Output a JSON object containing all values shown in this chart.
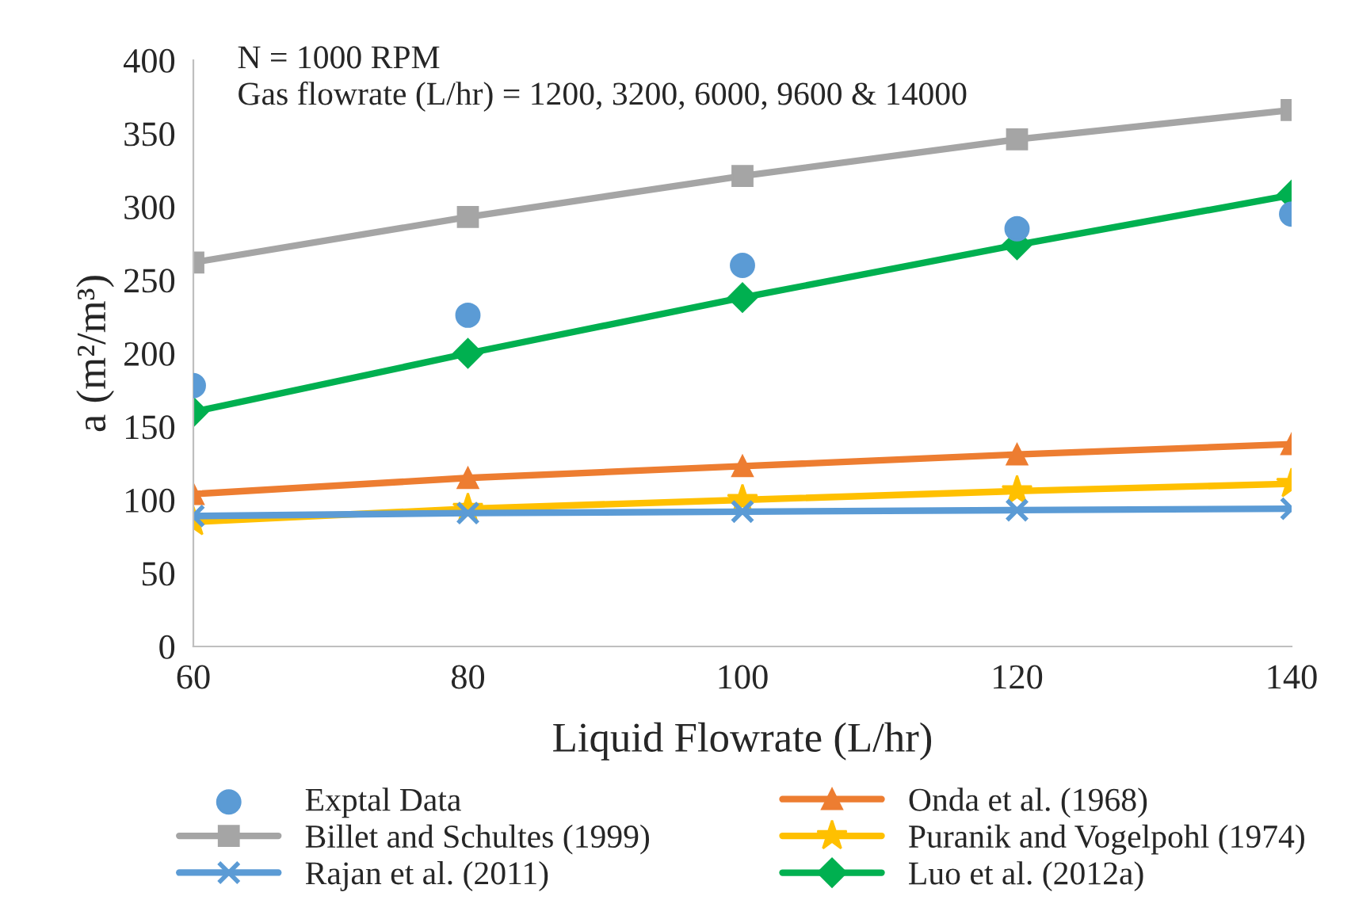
{
  "chart_data": {
    "type": "line",
    "xlabel": "Liquid Flowrate (L/hr)",
    "ylabel": "a (m²/m³)",
    "x": [
      60,
      80,
      100,
      120,
      140
    ],
    "xlim": [
      60,
      140
    ],
    "xticks": [
      60,
      80,
      100,
      120,
      140
    ],
    "ylim": [
      0,
      400
    ],
    "yticks": [
      0,
      50,
      100,
      150,
      200,
      250,
      300,
      350,
      400
    ],
    "grid": false,
    "legend": "bottom",
    "annotations": [
      "N = 1000 RPM",
      "Gas flowrate (L/hr) = 1200, 3200, 6000, 9600 & 14000"
    ],
    "series": [
      {
        "name": "Exptal Data",
        "type": "scatter",
        "marker": "circle",
        "color": "#5b9bd5",
        "values": [
          178,
          226,
          260,
          285,
          295
        ]
      },
      {
        "name": "Onda et al. (1968)",
        "marker": "triangle",
        "color": "#ed7d31",
        "values": [
          104,
          115,
          123,
          131,
          138
        ]
      },
      {
        "name": "Billet and Schultes (1999)",
        "marker": "square",
        "color": "#a5a5a5",
        "values": [
          262,
          293,
          321,
          346,
          366
        ]
      },
      {
        "name": "Puranik and Vogelpohl (1974)",
        "marker": "star",
        "color": "#ffc000",
        "values": [
          85,
          94,
          100,
          106,
          111
        ]
      },
      {
        "name": "Rajan et al. (2011)",
        "marker": "cross",
        "color": "#5b9bd5",
        "values": [
          89,
          91,
          92,
          93,
          94
        ]
      },
      {
        "name": "Luo et al. (2012a)",
        "marker": "diamond",
        "color": "#00b050",
        "values": [
          160,
          200,
          238,
          274,
          308
        ]
      }
    ]
  }
}
